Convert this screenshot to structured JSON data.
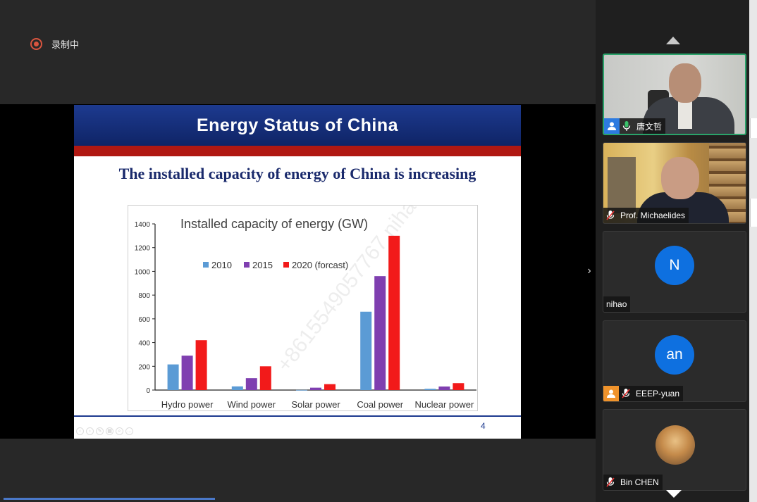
{
  "recording": {
    "label": "录制中"
  },
  "slide": {
    "title": "Energy Status of China",
    "subtitle": "The installed capacity of energy of China is increasing",
    "page_number": "4",
    "watermark": "+8615549057767 nihao"
  },
  "chart_data": {
    "type": "bar",
    "title": "Installed capacity of energy (GW)",
    "categories": [
      "Hydro power",
      "Wind power",
      "Solar power",
      "Coal power",
      "Nuclear power"
    ],
    "series": [
      {
        "name": "2010",
        "color": "#5b9bd5",
        "values": [
          216,
          31,
          1,
          660,
          11
        ]
      },
      {
        "name": "2015",
        "color": "#7f3fb0",
        "values": [
          290,
          100,
          20,
          960,
          30
        ]
      },
      {
        "name": "2020 (forcast)",
        "color": "#f21a1a",
        "values": [
          420,
          200,
          50,
          1300,
          58
        ]
      }
    ],
    "legend_labels": [
      "2010",
      "2015",
      "2020 (forcast)"
    ],
    "ylim": [
      0,
      1400
    ],
    "yticks": [
      "0",
      "200",
      "400",
      "600",
      "800",
      "1000",
      "1200",
      "1400"
    ],
    "legend_position": "top-center"
  },
  "participants": [
    {
      "name": "唐文哲",
      "type": "video",
      "active": true,
      "mic": "on"
    },
    {
      "name": "Prof. Michaelides",
      "type": "video",
      "active": false,
      "mic": "muted"
    },
    {
      "name": "nihao",
      "type": "avatar",
      "initials": "N",
      "active": false,
      "mic": "none"
    },
    {
      "name": "EEEP-yuan",
      "type": "avatar",
      "initials": "an",
      "active": false,
      "mic": "muted"
    },
    {
      "name": "Bin CHEN",
      "type": "photo",
      "active": false,
      "mic": "muted"
    }
  ],
  "icons": {
    "record": "record-icon",
    "next": "chevron-right-icon",
    "scroll_up": "chevron-up-icon",
    "scroll_down": "chevron-down-icon",
    "user": "user-icon",
    "mic_on": "mic-icon",
    "mic_muted": "mic-muted-icon"
  },
  "colors": {
    "active_border": "#2aa36a",
    "avatar_blue": "#0e70e0",
    "slide_header": "#1d3a8f",
    "slide_red": "#b01812"
  }
}
